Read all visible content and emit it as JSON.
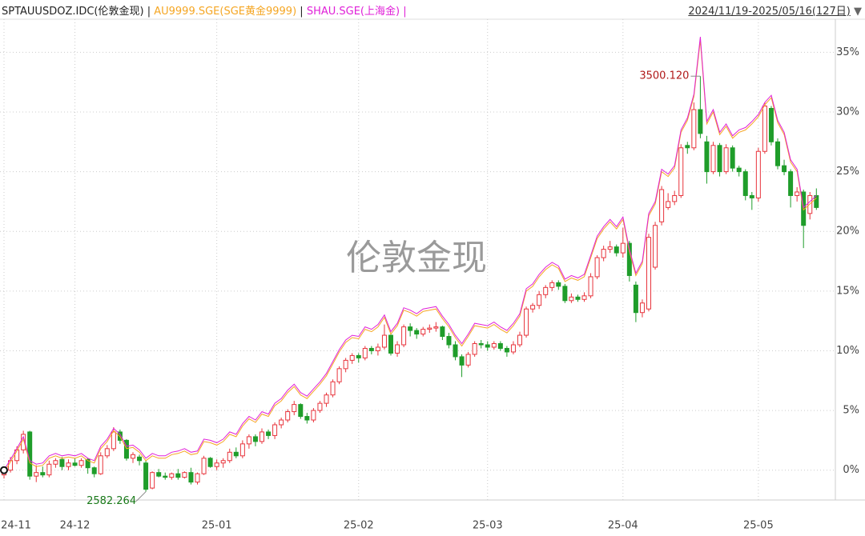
{
  "chart_data": {
    "type": "candlestick",
    "name": "SPTAUUSDOZ.IDC(伦敦金现)",
    "separator": "|",
    "date_range": "2024/11/19-2025/05/16(127日)",
    "watermark": "伦敦金现",
    "up_color": "#e8343c",
    "down_color": "#1f9d2a",
    "categories": [
      "24-11",
      null,
      null,
      null,
      null,
      null,
      null,
      null,
      null,
      null,
      null,
      "24-12",
      null,
      null,
      null,
      null,
      null,
      null,
      null,
      null,
      null,
      null,
      null,
      null,
      null,
      null,
      null,
      null,
      null,
      null,
      null,
      null,
      null,
      "25-01",
      null,
      null,
      null,
      null,
      null,
      null,
      null,
      null,
      null,
      null,
      null,
      null,
      null,
      null,
      null,
      null,
      null,
      null,
      null,
      null,
      null,
      "25-02",
      null,
      null,
      null,
      null,
      null,
      null,
      null,
      null,
      null,
      null,
      null,
      null,
      null,
      null,
      null,
      null,
      null,
      null,
      null,
      "25-03",
      null,
      null,
      null,
      null,
      null,
      null,
      null,
      null,
      null,
      null,
      null,
      null,
      null,
      null,
      null,
      null,
      null,
      null,
      null,
      null,
      "25-04",
      null,
      null,
      null,
      null,
      null,
      null,
      null,
      null,
      null,
      null,
      null,
      null,
      null,
      null,
      null,
      null,
      null,
      null,
      null,
      null,
      "25-05",
      null,
      null,
      null,
      null,
      null,
      null,
      null,
      null,
      null
    ],
    "ohlc": [
      [
        -0.4,
        0.3,
        -0.7,
        0.0
      ],
      [
        0.0,
        1.1,
        -0.2,
        0.8
      ],
      [
        0.8,
        2.0,
        0.5,
        1.7
      ],
      [
        1.7,
        3.3,
        1.4,
        3.0
      ],
      [
        3.2,
        3.3,
        -0.8,
        -0.5
      ],
      [
        -0.5,
        0.4,
        -1.0,
        -0.2
      ],
      [
        -0.2,
        0.3,
        -0.6,
        -0.4
      ],
      [
        -0.4,
        0.8,
        -0.6,
        0.5
      ],
      [
        0.5,
        1.0,
        0.2,
        0.8
      ],
      [
        0.9,
        1.1,
        0.0,
        0.3
      ],
      [
        0.3,
        0.9,
        0.0,
        0.6
      ],
      [
        0.6,
        1.0,
        0.3,
        0.4
      ],
      [
        0.4,
        1.0,
        0.2,
        0.8
      ],
      [
        0.9,
        1.0,
        -0.3,
        0.2
      ],
      [
        0.2,
        0.3,
        -0.6,
        -0.3
      ],
      [
        -0.3,
        1.5,
        -0.4,
        1.2
      ],
      [
        1.2,
        2.1,
        1.0,
        1.8
      ],
      [
        1.8,
        3.6,
        1.6,
        3.2
      ],
      [
        3.2,
        3.4,
        2.2,
        2.5
      ],
      [
        2.5,
        2.6,
        0.8,
        1.0
      ],
      [
        1.0,
        1.5,
        0.6,
        1.3
      ],
      [
        1.1,
        1.3,
        0.4,
        0.8
      ],
      [
        0.6,
        0.8,
        -1.8,
        -1.6
      ],
      [
        -1.5,
        -0.1,
        -1.6,
        -0.2
      ],
      [
        -0.2,
        0.1,
        -0.6,
        -0.5
      ],
      [
        -0.5,
        -0.2,
        -0.8,
        -0.6
      ],
      [
        -0.6,
        -0.2,
        -0.8,
        -0.3
      ],
      [
        -0.3,
        0.1,
        -0.8,
        -0.6
      ],
      [
        -0.6,
        -0.1,
        -0.7,
        -0.2
      ],
      [
        -0.2,
        0.2,
        -1.2,
        -1.0
      ],
      [
        -1.0,
        -0.2,
        -1.2,
        -0.3
      ],
      [
        -0.3,
        1.2,
        -0.4,
        1.0
      ],
      [
        1.0,
        1.1,
        0.2,
        0.3
      ],
      [
        0.3,
        0.9,
        0.0,
        0.6
      ],
      [
        0.6,
        1.0,
        0.2,
        0.8
      ],
      [
        0.8,
        1.8,
        0.6,
        1.5
      ],
      [
        1.5,
        1.9,
        1.0,
        1.2
      ],
      [
        1.2,
        2.5,
        1.0,
        2.2
      ],
      [
        2.2,
        3.0,
        1.8,
        2.8
      ],
      [
        2.8,
        3.0,
        2.0,
        2.4
      ],
      [
        2.4,
        3.5,
        2.2,
        3.2
      ],
      [
        3.2,
        3.4,
        2.6,
        2.9
      ],
      [
        2.9,
        4.0,
        2.6,
        3.8
      ],
      [
        3.8,
        4.4,
        3.5,
        4.2
      ],
      [
        4.2,
        5.1,
        4.0,
        4.9
      ],
      [
        4.9,
        5.8,
        4.6,
        5.5
      ],
      [
        5.5,
        5.6,
        4.3,
        4.5
      ],
      [
        4.5,
        4.8,
        3.9,
        4.2
      ],
      [
        4.2,
        5.2,
        4.0,
        5.0
      ],
      [
        5.0,
        5.8,
        4.8,
        5.6
      ],
      [
        5.6,
        6.5,
        5.3,
        6.3
      ],
      [
        6.3,
        7.6,
        6.1,
        7.4
      ],
      [
        7.4,
        8.7,
        7.2,
        8.5
      ],
      [
        8.5,
        9.4,
        8.2,
        9.2
      ],
      [
        9.2,
        9.8,
        8.9,
        9.6
      ],
      [
        9.6,
        9.8,
        9.0,
        9.4
      ],
      [
        9.4,
        10.4,
        9.2,
        10.2
      ],
      [
        10.2,
        10.4,
        9.7,
        10.0
      ],
      [
        10.0,
        10.6,
        9.6,
        10.3
      ],
      [
        10.3,
        12.2,
        10.1,
        11.3
      ],
      [
        11.3,
        11.5,
        9.6,
        9.8
      ],
      [
        9.8,
        10.8,
        9.5,
        10.5
      ],
      [
        10.5,
        12.2,
        10.3,
        12.0
      ],
      [
        12.0,
        12.3,
        11.2,
        11.7
      ],
      [
        11.7,
        11.9,
        11.0,
        11.4
      ],
      [
        11.4,
        12.0,
        11.2,
        11.8
      ],
      [
        11.8,
        12.2,
        11.5,
        11.9
      ],
      [
        11.9,
        12.4,
        11.6,
        12.0
      ],
      [
        12.0,
        12.1,
        10.9,
        11.2
      ],
      [
        11.2,
        11.5,
        10.2,
        10.5
      ],
      [
        10.5,
        10.8,
        9.2,
        9.5
      ],
      [
        9.5,
        9.7,
        7.8,
        8.8
      ],
      [
        8.8,
        9.9,
        8.6,
        9.7
      ],
      [
        9.7,
        10.8,
        9.5,
        10.6
      ],
      [
        10.6,
        10.9,
        10.2,
        10.5
      ],
      [
        10.5,
        10.8,
        10.0,
        10.3
      ],
      [
        10.3,
        10.8,
        10.1,
        10.6
      ],
      [
        10.6,
        10.8,
        10.0,
        10.2
      ],
      [
        10.2,
        10.4,
        9.5,
        9.9
      ],
      [
        9.9,
        10.8,
        9.7,
        10.5
      ],
      [
        10.5,
        11.6,
        10.3,
        11.3
      ],
      [
        11.3,
        13.7,
        11.1,
        13.5
      ],
      [
        13.5,
        14.0,
        13.2,
        13.8
      ],
      [
        13.8,
        15.0,
        13.5,
        14.7
      ],
      [
        14.7,
        15.5,
        14.4,
        15.3
      ],
      [
        15.3,
        15.9,
        15.0,
        15.7
      ],
      [
        15.7,
        15.9,
        15.1,
        15.4
      ],
      [
        15.4,
        15.6,
        14.0,
        14.2
      ],
      [
        14.2,
        14.8,
        14.0,
        14.5
      ],
      [
        14.5,
        14.7,
        14.1,
        14.3
      ],
      [
        14.3,
        14.9,
        14.1,
        14.6
      ],
      [
        14.6,
        16.5,
        14.4,
        16.2
      ],
      [
        16.2,
        18.0,
        16.0,
        17.8
      ],
      [
        17.8,
        18.8,
        17.5,
        18.5
      ],
      [
        18.5,
        19.2,
        18.2,
        18.7
      ],
      [
        18.7,
        18.9,
        17.9,
        18.2
      ],
      [
        18.2,
        20.3,
        17.8,
        19.0
      ],
      [
        19.0,
        19.2,
        15.8,
        16.3
      ],
      [
        15.5,
        15.8,
        12.4,
        13.2
      ],
      [
        13.2,
        14.3,
        12.8,
        14.0
      ],
      [
        13.5,
        19.8,
        13.3,
        19.5
      ],
      [
        17.0,
        20.8,
        16.8,
        20.5
      ],
      [
        20.8,
        23.8,
        20.5,
        23.5
      ],
      [
        22.0,
        23.2,
        21.8,
        22.5
      ],
      [
        22.5,
        23.4,
        22.2,
        23.0
      ],
      [
        23.0,
        27.3,
        22.8,
        27.0
      ],
      [
        27.2,
        27.5,
        26.5,
        27.0
      ],
      [
        27.0,
        30.8,
        26.8,
        30.2
      ],
      [
        30.2,
        33.0,
        27.8,
        28.2
      ],
      [
        27.5,
        28.0,
        24.0,
        25.0
      ],
      [
        25.0,
        27.5,
        24.8,
        27.2
      ],
      [
        27.2,
        27.4,
        24.6,
        25.0
      ],
      [
        25.0,
        27.3,
        24.8,
        27.0
      ],
      [
        27.0,
        27.2,
        25.0,
        25.3
      ],
      [
        25.3,
        25.5,
        24.6,
        25.0
      ],
      [
        25.0,
        25.2,
        22.6,
        23.0
      ],
      [
        23.0,
        23.3,
        21.8,
        22.8
      ],
      [
        22.8,
        27.0,
        22.5,
        26.7
      ],
      [
        26.7,
        30.8,
        26.5,
        30.5
      ],
      [
        30.3,
        30.5,
        27.2,
        27.5
      ],
      [
        27.5,
        27.8,
        25.2,
        25.5
      ],
      [
        25.5,
        26.0,
        24.7,
        25.0
      ],
      [
        25.0,
        25.2,
        22.0,
        23.0
      ],
      [
        23.0,
        23.7,
        22.5,
        23.3
      ],
      [
        23.3,
        23.5,
        18.6,
        20.5
      ],
      [
        21.5,
        23.3,
        21.0,
        23.0
      ],
      [
        23.0,
        23.6,
        21.8,
        22.0
      ]
    ],
    "series": [
      {
        "name": "AU9999.SGE(SGE黄金9999)",
        "color": "#f5a623",
        "values": [
          -0.2,
          0.7,
          1.6,
          2.6,
          0.6,
          0.3,
          0.4,
          1.0,
          1.2,
          1.0,
          1.1,
          1.0,
          1.2,
          0.8,
          0.6,
          1.8,
          2.4,
          3.3,
          2.8,
          1.8,
          1.9,
          1.5,
          0.8,
          1.2,
          1.0,
          1.0,
          1.3,
          1.4,
          1.6,
          1.3,
          1.4,
          2.4,
          2.3,
          2.1,
          2.4,
          3.0,
          2.8,
          3.7,
          4.3,
          4.0,
          4.7,
          4.5,
          5.4,
          5.8,
          6.5,
          7.0,
          6.3,
          6.0,
          6.6,
          7.2,
          7.9,
          8.9,
          9.9,
          10.7,
          11.1,
          11.0,
          11.8,
          11.6,
          12.0,
          12.8,
          11.4,
          12.1,
          13.4,
          13.2,
          12.9,
          13.3,
          13.4,
          13.5,
          12.7,
          12.0,
          11.1,
          10.4,
          11.2,
          12.1,
          12.0,
          11.9,
          12.2,
          11.8,
          11.5,
          12.1,
          12.9,
          15.0,
          15.4,
          16.2,
          16.8,
          17.2,
          16.9,
          15.8,
          16.1,
          15.9,
          16.2,
          17.8,
          19.4,
          20.2,
          20.8,
          20.2,
          21.0,
          18.3,
          16.3,
          17.3,
          21.3,
          22.3,
          25.0,
          24.6,
          25.3,
          28.3,
          29.3,
          31.3,
          36.0,
          29.0,
          30.0,
          28.1,
          28.8,
          27.8,
          28.3,
          28.5,
          29.0,
          29.6,
          30.6,
          31.2,
          29.1,
          28.1,
          25.8,
          25.0,
          21.8,
          22.3,
          22.8
        ]
      },
      {
        "name": "SHAU.SGE(上海金)",
        "color": "#e020d8",
        "values": [
          0.0,
          0.9,
          1.8,
          2.8,
          0.8,
          0.5,
          0.6,
          1.2,
          1.4,
          1.2,
          1.3,
          1.2,
          1.4,
          1.0,
          0.8,
          2.0,
          2.6,
          3.5,
          3.0,
          2.0,
          2.1,
          1.7,
          1.0,
          1.4,
          1.2,
          1.2,
          1.5,
          1.6,
          1.8,
          1.5,
          1.6,
          2.6,
          2.5,
          2.3,
          2.6,
          3.2,
          3.0,
          3.9,
          4.5,
          4.2,
          4.9,
          4.7,
          5.6,
          6.0,
          6.7,
          7.2,
          6.5,
          6.2,
          6.8,
          7.4,
          8.1,
          9.1,
          10.1,
          10.9,
          11.3,
          11.2,
          12.0,
          11.8,
          12.2,
          13.0,
          11.6,
          12.3,
          13.6,
          13.4,
          13.1,
          13.5,
          13.6,
          13.7,
          12.9,
          12.2,
          11.3,
          10.6,
          11.4,
          12.3,
          12.2,
          12.1,
          12.4,
          12.0,
          11.7,
          12.3,
          13.1,
          15.2,
          15.6,
          16.4,
          17.0,
          17.4,
          17.1,
          16.0,
          16.3,
          16.1,
          16.4,
          18.0,
          19.6,
          20.4,
          21.0,
          20.4,
          21.2,
          18.5,
          16.5,
          17.5,
          21.5,
          22.5,
          25.2,
          24.8,
          25.5,
          28.5,
          29.5,
          31.5,
          36.3,
          29.2,
          30.2,
          28.3,
          29.0,
          28.0,
          28.5,
          28.7,
          29.2,
          29.8,
          30.8,
          31.4,
          29.3,
          28.3,
          26.0,
          25.2,
          22.0,
          22.5,
          23.0
        ]
      }
    ],
    "max_label": "3500.120",
    "min_label": "2582.264",
    "ylim": [
      -2.5,
      36.7
    ],
    "yticks": [
      {
        "value": 0,
        "label": "0%"
      },
      {
        "value": 5,
        "label": "5%"
      },
      {
        "value": 10,
        "label": "10%"
      },
      {
        "value": 15,
        "label": "15%"
      },
      {
        "value": 20,
        "label": "20%"
      },
      {
        "value": 25,
        "label": "25%"
      },
      {
        "value": 30,
        "label": "30%"
      },
      {
        "value": 35,
        "label": "35%"
      }
    ],
    "grid": true
  }
}
